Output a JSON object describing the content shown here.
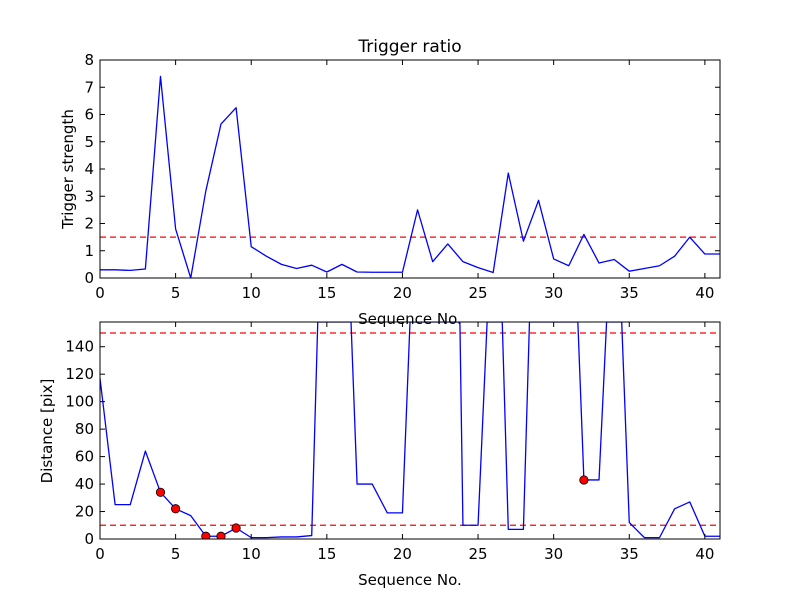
{
  "chart_data": [
    {
      "type": "line",
      "title": "Trigger ratio",
      "xlabel": "Sequence No.",
      "ylabel": "Trigger strength",
      "xlim": [
        0,
        41
      ],
      "ylim": [
        0,
        8
      ],
      "xticks": [
        0,
        5,
        10,
        15,
        20,
        25,
        30,
        35,
        40
      ],
      "yticks": [
        0,
        1,
        2,
        3,
        4,
        5,
        6,
        7,
        8
      ],
      "grid": false,
      "series": [
        {
          "color": "#0000ff",
          "x": [
            0,
            1,
            2,
            3,
            4,
            5,
            6,
            7,
            8,
            9,
            10,
            11,
            12,
            13,
            14,
            15,
            16,
            17,
            18,
            19,
            20,
            21,
            22,
            23,
            24,
            25,
            26,
            27,
            28,
            29,
            30,
            31,
            32,
            33,
            34,
            35,
            36,
            37,
            38,
            39,
            40,
            41
          ],
          "y": [
            0.3,
            0.3,
            0.28,
            0.33,
            7.4,
            1.8,
            0.0,
            3.2,
            5.65,
            6.25,
            1.15,
            0.8,
            0.5,
            0.35,
            0.47,
            0.22,
            0.5,
            0.22,
            0.21,
            0.21,
            0.21,
            2.5,
            0.6,
            1.25,
            0.6,
            0.38,
            0.2,
            3.85,
            1.35,
            2.85,
            0.7,
            0.45,
            1.6,
            0.55,
            0.68,
            0.25,
            0.35,
            0.45,
            0.8,
            1.5,
            0.88,
            0.88
          ]
        }
      ],
      "hlines": [
        {
          "y": 1.5,
          "color": "#ff0000",
          "style": "dashed"
        }
      ]
    },
    {
      "type": "line",
      "title": "",
      "xlabel": "Sequence No.",
      "ylabel": "Distance [pix]",
      "xlim": [
        0,
        41
      ],
      "ylim": [
        0,
        158
      ],
      "xticks": [
        0,
        5,
        10,
        15,
        20,
        25,
        30,
        35,
        40
      ],
      "yticks": [
        0,
        20,
        40,
        60,
        80,
        100,
        120,
        140
      ],
      "grid": false,
      "series": [
        {
          "color": "#0000ff",
          "x": [
            0,
            1,
            2,
            3,
            4,
            5,
            6,
            7,
            8,
            9,
            10,
            11,
            12,
            13,
            14,
            14.4,
            16.6,
            17,
            18,
            19,
            20,
            20.5,
            23.8,
            24,
            25,
            25.6,
            26.6,
            27,
            28,
            28.4,
            31.6,
            32,
            33,
            33.5,
            34.5,
            35,
            36,
            37,
            38,
            39,
            40,
            41
          ],
          "y": [
            117,
            25,
            25,
            64,
            34,
            22,
            17,
            2,
            2,
            8,
            1,
            1,
            1.5,
            1.5,
            2.5,
            158,
            158,
            40,
            40,
            19,
            19,
            158,
            158,
            10,
            10,
            158,
            158,
            7,
            7,
            158,
            158,
            43,
            43,
            158,
            158,
            12,
            1,
            1,
            22,
            27,
            2,
            2
          ]
        },
        {
          "color": "#ff0000",
          "marker": "circle",
          "x": [
            4,
            5,
            7,
            8,
            9,
            32
          ],
          "y": [
            34,
            22,
            2,
            2,
            8,
            43
          ]
        }
      ],
      "hlines": [
        {
          "y": 150,
          "color": "#ff0000",
          "style": "dashed"
        },
        {
          "y": 10,
          "color": "#ff0000",
          "style": "dashed"
        }
      ]
    }
  ]
}
